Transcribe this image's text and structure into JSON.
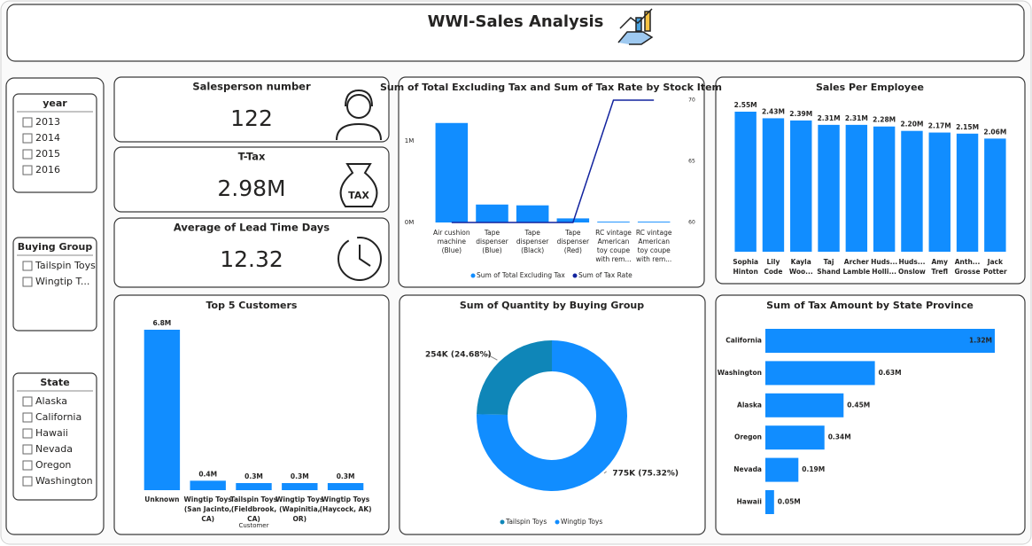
{
  "header": {
    "title": "WWI-Sales Analysis"
  },
  "slicers": [
    {
      "title": "year",
      "items": [
        "2013",
        "2014",
        "2015",
        "2016"
      ]
    },
    {
      "title": "Buying Group",
      "items": [
        "Tailspin Toys",
        "Wingtip T..."
      ]
    },
    {
      "title": "State",
      "items": [
        "Alaska",
        "California",
        "Hawaii",
        "Nevada",
        "Oregon",
        "Washington"
      ]
    }
  ],
  "cards": [
    {
      "title": "Salesperson number",
      "value": 122
    },
    {
      "title": "T-Tax",
      "value": "2.98M"
    },
    {
      "title": "Average of Lead Time Days",
      "value": 12.32
    }
  ],
  "chart_data": [
    {
      "type": "combo",
      "title": "Sum of Total Excluding Tax and Sum of Tax Rate by Stock Item",
      "categories": [
        "Air cushion machine (Blue)",
        "Tape dispenser (Blue)",
        "Tape dispenser (Black)",
        "Tape dispenser (Red)",
        "RC vintage American toy coupe with rem...",
        "RC vintage American toy coupe with rem..."
      ],
      "series": [
        {
          "name": "Sum of Total Excluding Tax",
          "color": "#118dff",
          "type": "bar",
          "values": [
            1220000,
            220000,
            210000,
            50000,
            10000,
            10000
          ]
        },
        {
          "name": "Sum of Tax Rate",
          "color": "#12239e",
          "type": "line",
          "axis": "y2",
          "values": [
            60,
            60,
            60,
            60,
            70,
            70
          ]
        }
      ],
      "ylim": [
        0,
        1500000
      ],
      "yticks": [
        {
          "value": 0,
          "label": "0M"
        },
        {
          "value": 1000000,
          "label": "1M"
        }
      ],
      "y2lim": [
        60,
        70
      ],
      "y2ticks": [
        60,
        65,
        70
      ],
      "legend": "bottom"
    },
    {
      "type": "bar",
      "title": "Sales Per Employee",
      "categories": [
        "Sophia Hinton",
        "Lily Code",
        "Kayla Woo...",
        "Taj Shand",
        "Archer Lamble",
        "Huds... Holli...",
        "Huds... Onslow",
        "Amy Trefl",
        "Anth... Grosse",
        "Jack Potter"
      ],
      "values": [
        2.55,
        2.43,
        2.39,
        2.31,
        2.31,
        2.28,
        2.2,
        2.17,
        2.15,
        2.06
      ],
      "value_labels": [
        "2.55M",
        "2.43M",
        "2.39M",
        "2.31M",
        "2.31M",
        "2.28M",
        "2.20M",
        "2.17M",
        "2.15M",
        "2.06M"
      ],
      "color": "#118dff"
    },
    {
      "type": "bar",
      "title": "Top 5 Customers",
      "x_label": "Customer",
      "categories": [
        "Unknown",
        "Wingtip Toys (San Jacinto, CA)",
        "Tailspin Toys (Fieldbrook, CA)",
        "Wingtip Toys (Wapinitia, OR)",
        "Wingtip Toys (Haycock, AK)"
      ],
      "values": [
        6.8,
        0.4,
        0.3,
        0.3,
        0.3
      ],
      "value_labels": [
        "6.8M",
        "0.4M",
        "0.3M",
        "0.3M",
        "0.3M"
      ],
      "color": "#118dff"
    },
    {
      "type": "donut",
      "title": "Sum of Quantity by Buying Group",
      "categories": [
        "Tailspin Toys",
        "Wingtip Toys"
      ],
      "values": [
        254000,
        775000
      ],
      "value_labels": [
        "254K (24.68%)",
        "775K (75.32%)"
      ],
      "colors": [
        "#0f86b8",
        "#118dff"
      ],
      "legend": "bottom"
    },
    {
      "type": "hbar",
      "title": "Sum of Tax Amount by State Province",
      "categories": [
        "California",
        "Washington",
        "Alaska",
        "Oregon",
        "Nevada",
        "Hawaii"
      ],
      "values": [
        1.32,
        0.63,
        0.45,
        0.34,
        0.19,
        0.05
      ],
      "value_labels": [
        "1.32M",
        "0.63M",
        "0.45M",
        "0.34M",
        "0.19M",
        "0.05M"
      ],
      "color": "#118dff"
    }
  ]
}
